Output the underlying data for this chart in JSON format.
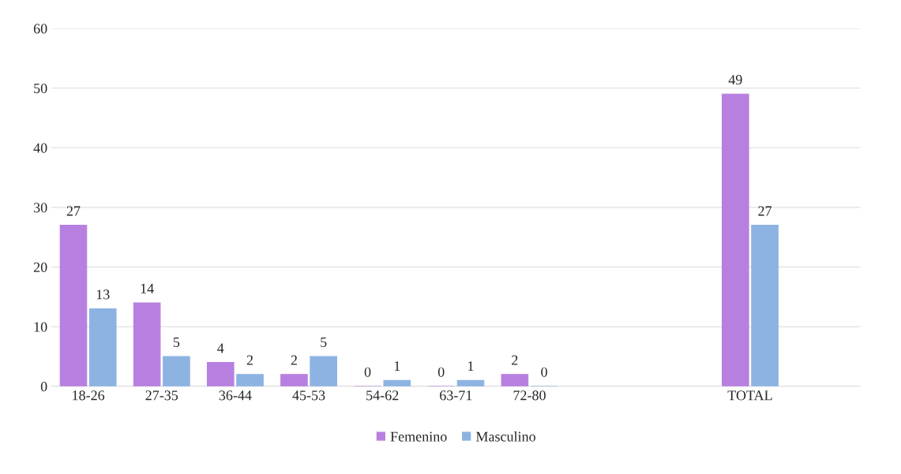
{
  "chart_data": {
    "type": "bar",
    "categories": [
      "18-26",
      "27-35",
      "36-44",
      "45-53",
      "54-62",
      "63-71",
      "72-80",
      null,
      null,
      "TOTAL",
      null
    ],
    "series": [
      {
        "name": "Femenino",
        "color": "#b780e0",
        "values": [
          27,
          14,
          4,
          2,
          0,
          0,
          2,
          null,
          null,
          49,
          null
        ]
      },
      {
        "name": "Masculino",
        "color": "#8db3e2",
        "values": [
          13,
          5,
          2,
          5,
          1,
          1,
          0,
          null,
          null,
          27,
          null
        ]
      }
    ],
    "ylim": [
      0,
      60
    ],
    "yticks": [
      0,
      10,
      20,
      30,
      40,
      50,
      60
    ],
    "grid": "y",
    "legend": "bottom",
    "data_labels": true
  }
}
